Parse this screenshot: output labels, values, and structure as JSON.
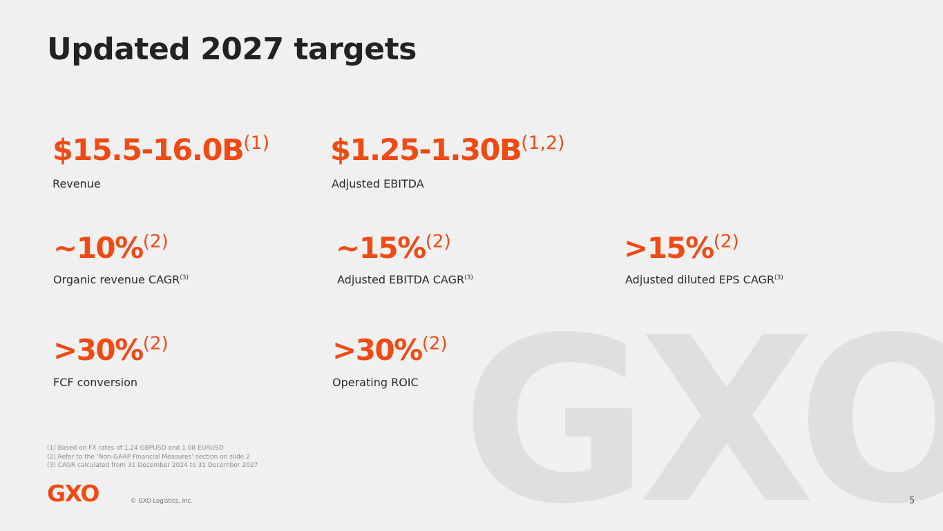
{
  "slide": {
    "title": "Updated 2027 targets",
    "watermark": "GXO",
    "logo": "GXO",
    "copyright": "© GXO Logistics, Inc.",
    "page_number": "5"
  },
  "metrics": [
    {
      "value": "$15.5-16.0B",
      "note": "(1)",
      "label": "Revenue",
      "label_note": ""
    },
    {
      "value": "$1.25-1.30B",
      "note": "(1,2)",
      "label": "Adjusted EBITDA",
      "label_note": ""
    },
    {
      "value": "~10%",
      "note": "(2)",
      "label": "Organic revenue CAGR",
      "label_note": "(3)"
    },
    {
      "value": "~15%",
      "note": "(2)",
      "label": "Adjusted EBITDA CAGR",
      "label_note": "(3)"
    },
    {
      "value": ">15%",
      "note": "(2)",
      "label": "Adjusted diluted EPS CAGR",
      "label_note": "(3)"
    },
    {
      "value": ">30%",
      "note": "(2)",
      "label": "FCF conversion",
      "label_note": ""
    },
    {
      "value": ">30%",
      "note": "(2)",
      "label": "Operating ROIC",
      "label_note": ""
    }
  ],
  "footnotes": [
    "(1) Based on FX rates of 1.24 GBPUSD and 1.08 EURUSD",
    "(2) Refer to the ‘Non-GAAP Financial Measures’ section on slide 2",
    "(3) CAGR calculated from 31 December 2024 to 31 December 2027"
  ],
  "colors": {
    "accent": "#f04a14",
    "background": "#f0f0f0",
    "watermark": "#dfdfdf",
    "text": "#222222"
  }
}
